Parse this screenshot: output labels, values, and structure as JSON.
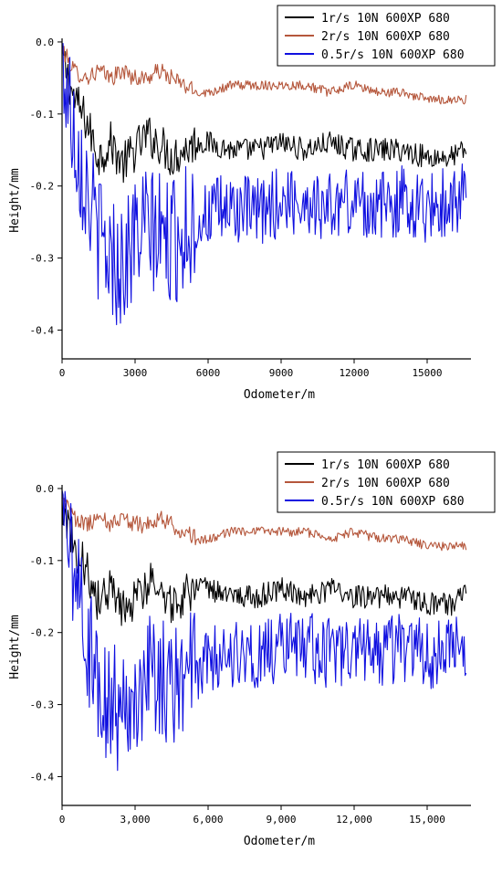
{
  "chart_data": [
    {
      "type": "line",
      "xlabel": "Odometer/m",
      "ylabel": "Height/mm",
      "xlim": [
        0,
        16800
      ],
      "ylim": [
        -0.44,
        0.005
      ],
      "xticks": [
        0,
        3000,
        6000,
        9000,
        12000,
        15000
      ],
      "xtick_labels": [
        "0",
        "3000",
        "6000",
        "9000",
        "12000",
        "15000"
      ],
      "yticks": [
        0.0,
        -0.1,
        -0.2,
        -0.3,
        -0.4
      ],
      "ytick_labels": [
        "0.0",
        "-0.1",
        "-0.2",
        "-0.3",
        "-0.4"
      ],
      "grid": false,
      "legend_position": "top-right",
      "series": [
        {
          "name": "1r/s 10N 600XP 680",
          "color": "#000000",
          "x": [
            0,
            500,
            1000,
            1500,
            2000,
            2500,
            3000,
            3500,
            4000,
            4500,
            5000,
            5500,
            6000,
            7000,
            8000,
            9000,
            10000,
            11000,
            12000,
            13000,
            14000,
            15000,
            16000,
            16600
          ],
          "y": [
            -0.02,
            -0.08,
            -0.11,
            -0.16,
            -0.14,
            -0.17,
            -0.15,
            -0.13,
            -0.14,
            -0.16,
            -0.15,
            -0.14,
            -0.14,
            -0.15,
            -0.15,
            -0.14,
            -0.15,
            -0.14,
            -0.15,
            -0.15,
            -0.15,
            -0.16,
            -0.16,
            -0.15
          ]
        },
        {
          "name": "2r/s 10N 600XP 680",
          "color": "#b5573c",
          "x": [
            0,
            500,
            1000,
            1500,
            2000,
            2500,
            3000,
            3500,
            4000,
            4500,
            5000,
            5500,
            6000,
            7000,
            8000,
            9000,
            10000,
            11000,
            12000,
            13000,
            14000,
            15000,
            16000,
            16600
          ],
          "y": [
            -0.01,
            -0.04,
            -0.05,
            -0.04,
            -0.05,
            -0.04,
            -0.05,
            -0.05,
            -0.04,
            -0.05,
            -0.06,
            -0.07,
            -0.07,
            -0.06,
            -0.06,
            -0.06,
            -0.06,
            -0.07,
            -0.06,
            -0.07,
            -0.07,
            -0.08,
            -0.08,
            -0.08
          ]
        },
        {
          "name": "0.5r/s 10N 600XP 680",
          "color": "#1010e0",
          "x": [
            0,
            500,
            1000,
            1500,
            2000,
            2500,
            3000,
            3500,
            4000,
            4500,
            5000,
            5500,
            6000,
            7000,
            8000,
            9000,
            10000,
            11000,
            12000,
            13000,
            14000,
            15000,
            16000,
            16600
          ],
          "y": [
            -0.03,
            -0.12,
            -0.2,
            -0.27,
            -0.3,
            -0.31,
            -0.27,
            -0.26,
            -0.27,
            -0.28,
            -0.26,
            -0.25,
            -0.24,
            -0.23,
            -0.24,
            -0.22,
            -0.22,
            -0.23,
            -0.22,
            -0.23,
            -0.22,
            -0.23,
            -0.22,
            -0.21
          ]
        }
      ]
    },
    {
      "type": "line",
      "xlabel": "Odometer/m",
      "ylabel": "Height/mm",
      "xlim": [
        0,
        16800
      ],
      "ylim": [
        -0.44,
        0.005
      ],
      "xticks": [
        0,
        3000,
        6000,
        9000,
        12000,
        15000
      ],
      "xtick_labels": [
        "0",
        "3,000",
        "6,000",
        "9,000",
        "12,000",
        "15,000"
      ],
      "yticks": [
        0.0,
        -0.1,
        -0.2,
        -0.3,
        -0.4
      ],
      "ytick_labels": [
        "0.0",
        "-0.1",
        "-0.2",
        "-0.3",
        "-0.4"
      ],
      "grid": false,
      "legend_position": "top-right",
      "series": [
        {
          "name": "1r/s 10N 600XP 680",
          "color": "#000000",
          "x": [
            0,
            500,
            1000,
            1500,
            2000,
            2500,
            3000,
            3500,
            4000,
            4500,
            5000,
            5500,
            6000,
            7000,
            8000,
            9000,
            10000,
            11000,
            12000,
            13000,
            14000,
            15000,
            16000,
            16600
          ],
          "y": [
            -0.02,
            -0.08,
            -0.11,
            -0.16,
            -0.14,
            -0.17,
            -0.15,
            -0.13,
            -0.14,
            -0.16,
            -0.15,
            -0.14,
            -0.14,
            -0.15,
            -0.15,
            -0.14,
            -0.15,
            -0.14,
            -0.15,
            -0.15,
            -0.15,
            -0.16,
            -0.16,
            -0.15
          ]
        },
        {
          "name": "2r/s 10N 600XP 680",
          "color": "#b5573c",
          "x": [
            0,
            500,
            1000,
            1500,
            2000,
            2500,
            3000,
            3500,
            4000,
            4500,
            5000,
            5500,
            6000,
            7000,
            8000,
            9000,
            10000,
            11000,
            12000,
            13000,
            14000,
            15000,
            16000,
            16600
          ],
          "y": [
            -0.01,
            -0.04,
            -0.05,
            -0.04,
            -0.05,
            -0.04,
            -0.05,
            -0.05,
            -0.04,
            -0.05,
            -0.06,
            -0.07,
            -0.07,
            -0.06,
            -0.06,
            -0.06,
            -0.06,
            -0.07,
            -0.06,
            -0.07,
            -0.07,
            -0.08,
            -0.08,
            -0.08
          ]
        },
        {
          "name": "0.5r/s 10N 600XP 680",
          "color": "#1010e0",
          "x": [
            0,
            500,
            1000,
            1500,
            2000,
            2500,
            3000,
            3500,
            4000,
            4500,
            5000,
            5500,
            6000,
            7000,
            8000,
            9000,
            10000,
            11000,
            12000,
            13000,
            14000,
            15000,
            16000,
            16600
          ],
          "y": [
            -0.03,
            -0.12,
            -0.2,
            -0.27,
            -0.3,
            -0.31,
            -0.27,
            -0.26,
            -0.27,
            -0.28,
            -0.26,
            -0.25,
            -0.24,
            -0.23,
            -0.24,
            -0.22,
            -0.22,
            -0.23,
            -0.22,
            -0.23,
            -0.22,
            -0.23,
            -0.22,
            -0.21
          ]
        }
      ]
    }
  ]
}
